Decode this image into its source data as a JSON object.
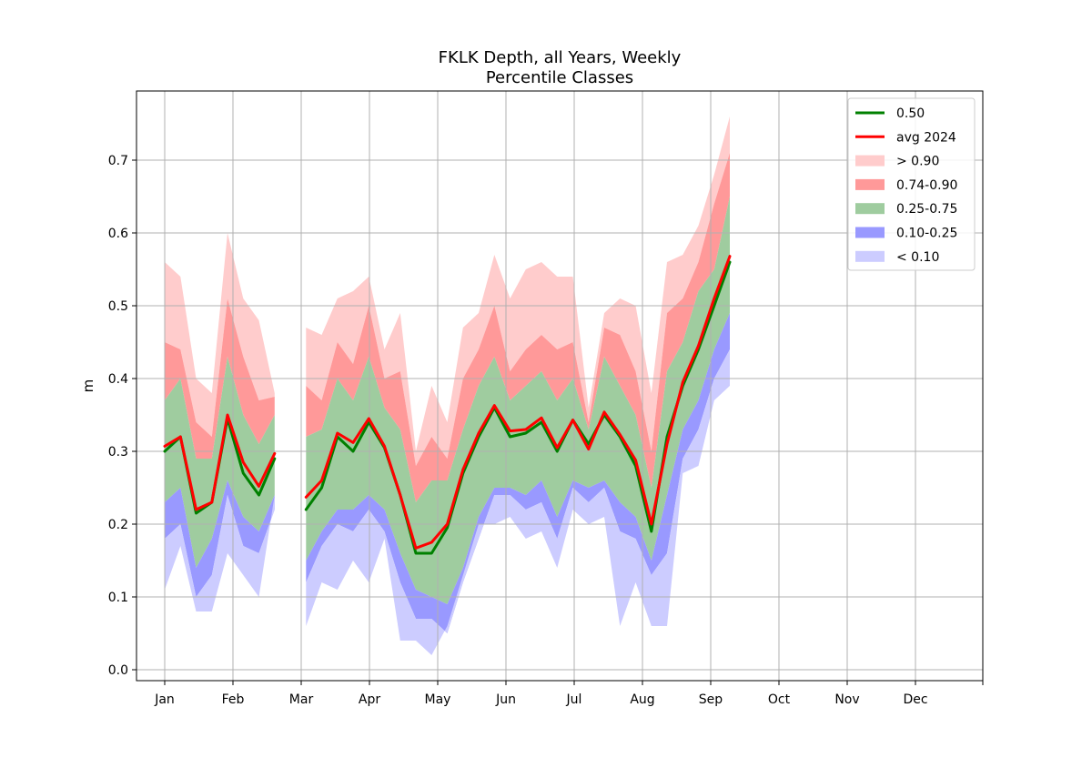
{
  "chart_data": {
    "type": "area",
    "title": "FKLK Depth, all Years, Weekly",
    "subtitle": "Percentile Classes",
    "xlabel": "",
    "ylabel": "m",
    "xlim": [
      0,
      12
    ],
    "ylim": [
      -0.015,
      0.795
    ],
    "x_tick_labels": [
      "Jan",
      "Feb",
      "Mar",
      "Apr",
      "May",
      "Jun",
      "Jul",
      "Aug",
      "Sep",
      "Oct",
      "Nov",
      "Dec"
    ],
    "y_ticks": [
      0.0,
      0.1,
      0.2,
      0.3,
      0.4,
      0.5,
      0.6,
      0.7
    ],
    "y_tick_labels": [
      "0.0",
      "0.1",
      "0.2",
      "0.3",
      "0.4",
      "0.5",
      "0.6",
      "0.7"
    ],
    "grid": true,
    "legend_position": "top-right",
    "x": [
      0.0,
      0.23,
      0.46,
      0.69,
      0.92,
      1.15,
      1.38,
      1.61,
      2.07,
      2.3,
      2.53,
      2.76,
      2.99,
      3.22,
      3.45,
      3.68,
      3.91,
      4.14,
      4.37,
      4.6,
      4.83,
      5.06,
      5.29,
      5.52,
      5.75,
      5.98,
      6.21,
      6.44,
      6.67,
      6.9,
      7.13,
      7.36,
      7.59,
      7.82,
      8.05,
      8.28,
      8.51,
      8.74
    ],
    "segments": [
      [
        0,
        7
      ],
      [
        8,
        37
      ]
    ],
    "bands": {
      "max": [
        0.56,
        0.54,
        0.4,
        0.38,
        0.6,
        0.51,
        0.48,
        0.38,
        0.47,
        0.46,
        0.51,
        0.52,
        0.54,
        0.44,
        0.49,
        0.3,
        0.39,
        0.34,
        0.47,
        0.49,
        0.57,
        0.51,
        0.55,
        0.56,
        0.54,
        0.54,
        0.36,
        0.49,
        0.51,
        0.5,
        0.38,
        0.56,
        0.57,
        0.61,
        0.68,
        0.76,
        null,
        null
      ],
      "p90": [
        0.45,
        0.44,
        0.34,
        0.32,
        0.51,
        0.43,
        0.37,
        0.375,
        0.39,
        0.37,
        0.45,
        0.42,
        0.5,
        0.4,
        0.41,
        0.28,
        0.32,
        0.29,
        0.4,
        0.44,
        0.5,
        0.41,
        0.44,
        0.46,
        0.44,
        0.45,
        0.34,
        0.47,
        0.46,
        0.41,
        0.3,
        0.49,
        0.51,
        0.56,
        0.64,
        0.71,
        null,
        null
      ],
      "p75": [
        0.37,
        0.4,
        0.29,
        0.29,
        0.43,
        0.35,
        0.31,
        0.35,
        0.32,
        0.33,
        0.4,
        0.37,
        0.43,
        0.36,
        0.33,
        0.23,
        0.26,
        0.26,
        0.33,
        0.39,
        0.43,
        0.37,
        0.39,
        0.41,
        0.37,
        0.4,
        0.33,
        0.43,
        0.39,
        0.35,
        0.25,
        0.41,
        0.45,
        0.52,
        0.55,
        0.65,
        null,
        null
      ],
      "p25": [
        0.23,
        0.25,
        0.14,
        0.18,
        0.26,
        0.21,
        0.19,
        0.24,
        0.15,
        0.19,
        0.22,
        0.22,
        0.24,
        0.22,
        0.16,
        0.11,
        0.1,
        0.09,
        0.14,
        0.21,
        0.25,
        0.25,
        0.24,
        0.26,
        0.21,
        0.26,
        0.25,
        0.26,
        0.23,
        0.21,
        0.15,
        0.24,
        0.33,
        0.37,
        0.44,
        0.49,
        null,
        null
      ],
      "p10": [
        0.18,
        0.2,
        0.1,
        0.13,
        0.24,
        0.17,
        0.16,
        0.22,
        0.12,
        0.17,
        0.2,
        0.19,
        0.22,
        0.19,
        0.12,
        0.07,
        0.07,
        0.05,
        0.12,
        0.18,
        0.24,
        0.24,
        0.22,
        0.23,
        0.18,
        0.25,
        0.23,
        0.25,
        0.19,
        0.18,
        0.13,
        0.16,
        0.29,
        0.33,
        0.4,
        0.44,
        null,
        null
      ],
      "min": [
        0.11,
        0.17,
        0.08,
        0.08,
        0.16,
        0.13,
        0.1,
        0.24,
        0.06,
        0.12,
        0.11,
        0.15,
        0.12,
        0.18,
        0.04,
        0.04,
        0.02,
        0.06,
        0.13,
        0.2,
        0.2,
        0.21,
        0.18,
        0.19,
        0.14,
        0.22,
        0.2,
        0.21,
        0.06,
        0.12,
        0.06,
        0.06,
        0.27,
        0.28,
        0.37,
        0.39,
        null,
        null
      ]
    },
    "series": [
      {
        "name": "0.50",
        "color": "#008000",
        "values": [
          0.3,
          0.32,
          0.215,
          0.23,
          0.345,
          0.27,
          0.24,
          0.29,
          0.22,
          0.25,
          0.32,
          0.3,
          0.34,
          0.305,
          0.24,
          0.16,
          0.16,
          0.195,
          0.27,
          0.32,
          0.36,
          0.32,
          0.325,
          0.34,
          0.3,
          0.343,
          0.31,
          0.35,
          0.32,
          0.28,
          0.19,
          0.32,
          0.39,
          0.44,
          0.5,
          0.56,
          null,
          null
        ]
      },
      {
        "name": "avg 2024",
        "color": "#ff0000",
        "values": [
          0.307,
          0.32,
          0.22,
          0.23,
          0.35,
          0.285,
          0.252,
          0.297,
          0.237,
          0.26,
          0.325,
          0.312,
          0.345,
          0.307,
          0.24,
          0.167,
          0.175,
          0.2,
          0.275,
          0.325,
          0.363,
          0.328,
          0.33,
          0.346,
          0.305,
          0.343,
          0.303,
          0.354,
          0.323,
          0.288,
          0.2,
          0.31,
          0.395,
          0.445,
          0.51,
          0.568,
          null,
          null
        ]
      }
    ],
    "legend": [
      {
        "label": "0.50",
        "kind": "line",
        "color": "#008000"
      },
      {
        "label": "avg 2024",
        "kind": "line",
        "color": "#ff0000"
      },
      {
        "label": "> 0.90",
        "kind": "patch",
        "color": "#ffcccc"
      },
      {
        "label": "0.74-0.90",
        "kind": "patch",
        "color": "#ff9999"
      },
      {
        "label": "0.25-0.75",
        "kind": "patch",
        "color": "#9fcc9f"
      },
      {
        "label": "0.10-0.25",
        "kind": "patch",
        "color": "#9999ff"
      },
      {
        "label": "< 0.10",
        "kind": "patch",
        "color": "#ccccff"
      }
    ]
  }
}
